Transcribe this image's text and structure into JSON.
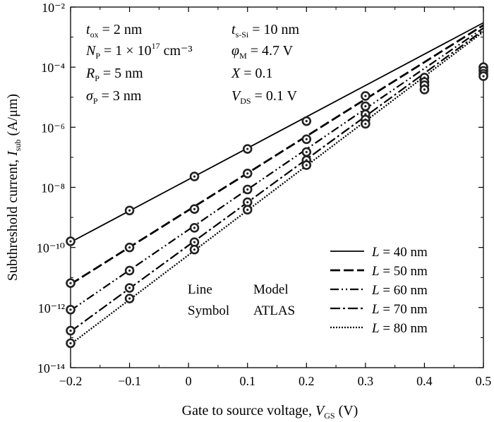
{
  "chart_data": {
    "type": "line",
    "x_axis": {
      "label_prefix": "Gate to source voltage, ",
      "label_var": "V",
      "label_sub": "GS",
      "label_suffix": " (V)",
      "range": [
        -0.2,
        0.5
      ],
      "ticks": [
        -0.2,
        -0.1,
        0,
        0.1,
        0.2,
        0.3,
        0.4,
        0.5
      ],
      "tick_labels": [
        "−0.2",
        "−0.1",
        "0",
        "0.1",
        "0.2",
        "0.3",
        "0.4",
        "0.5"
      ]
    },
    "y_axis": {
      "label_prefix": "Subthreshold current, ",
      "label_var": "I",
      "label_sub": "sub",
      "label_suffix": " (A/μm)",
      "scale": "log",
      "range_exp": [
        -14,
        -2
      ],
      "ticks_exp": [
        -14,
        -12,
        -10,
        -8,
        -6,
        -4,
        -2
      ],
      "tick_labels": [
        "10⁻¹⁴",
        "10⁻¹²",
        "10⁻¹⁰",
        "10⁻⁸",
        "10⁻⁶",
        "10⁻⁴",
        "10⁻²"
      ]
    },
    "parameters": [
      {
        "var": "t",
        "sub": "ox",
        "value": " = 2 nm"
      },
      {
        "var": "t",
        "sub": "s-Si",
        "value": " = 10 nm"
      },
      {
        "var": "N",
        "sub": "P",
        "value": " = 1 × 10",
        "sup": "17",
        "unit": " cm⁻³"
      },
      {
        "var": "φ",
        "sub": "M",
        "value": " = 4.7 V"
      },
      {
        "var": "R",
        "sub": "P",
        "value": " = 5 nm"
      },
      {
        "var": "X",
        "sub": "",
        "value": " = 0.1"
      },
      {
        "var": "σ",
        "sub": "P",
        "value": " = 3 nm"
      },
      {
        "var": "V",
        "sub": "DS",
        "value": " = 0.1 V"
      }
    ],
    "legend": {
      "series_prefix": "L",
      "notes": [
        [
          "Line",
          "Model"
        ],
        [
          "Symbol",
          "ATLAS"
        ]
      ]
    },
    "series": [
      {
        "name": "L = 40 nm",
        "dash": "solid",
        "x": [
          -0.2,
          0.5
        ],
        "y": [
          1.5e-10,
          0.003
        ],
        "symbols_x": [
          -0.2,
          -0.1,
          0.01,
          0.1,
          0.2,
          0.3,
          0.5
        ],
        "symbols_y": [
          1.6e-10,
          1.7e-09,
          2.3e-08,
          1.9e-07,
          1.6e-06,
          1.1e-05,
          8e-05
        ]
      },
      {
        "name": "L = 50 nm",
        "dash": "long-dash",
        "x": [
          -0.2,
          0.5
        ],
        "y": [
          6e-12,
          0.0025
        ],
        "symbols_x": [
          -0.2,
          -0.1,
          0.01,
          0.1,
          0.2,
          0.3,
          0.4,
          0.5
        ],
        "symbols_y": [
          6.5e-12,
          1e-10,
          1.9e-09,
          2.9e-08,
          4e-07,
          5e-06,
          4.5e-05,
          0.0001
        ]
      },
      {
        "name": "L = 60 nm",
        "dash": "dash-dot-dot",
        "x": [
          -0.2,
          0.5
        ],
        "y": [
          8e-13,
          0.002
        ],
        "symbols_x": [
          -0.2,
          -0.1,
          0.01,
          0.1,
          0.2,
          0.3,
          0.4,
          0.5
        ],
        "symbols_y": [
          8.5e-13,
          1.7e-11,
          4.5e-10,
          8.5e-09,
          1.5e-07,
          2.7e-06,
          3.2e-05,
          7.5e-05
        ]
      },
      {
        "name": "L = 70 nm",
        "dash": "dash-dot",
        "x": [
          -0.2,
          0.5
        ],
        "y": [
          1.6e-13,
          0.0017
        ],
        "symbols_x": [
          -0.2,
          -0.1,
          0.01,
          0.1,
          0.2,
          0.3,
          0.4,
          0.5
        ],
        "symbols_y": [
          1.7e-13,
          4.5e-12,
          1.5e-10,
          3.2e-09,
          8e-08,
          1.8e-06,
          2.5e-05,
          6e-05
        ]
      },
      {
        "name": "L = 80 nm",
        "dash": "dotted",
        "x": [
          -0.2,
          0.5
        ],
        "y": [
          6e-14,
          0.0015
        ],
        "symbols_x": [
          -0.2,
          -0.1,
          0.01,
          0.1,
          0.2,
          0.3,
          0.4,
          0.5
        ],
        "symbols_y": [
          6.5e-14,
          2e-12,
          8.5e-11,
          1.8e-09,
          5.5e-08,
          1.3e-06,
          1.8e-05,
          5e-05
        ]
      }
    ]
  }
}
